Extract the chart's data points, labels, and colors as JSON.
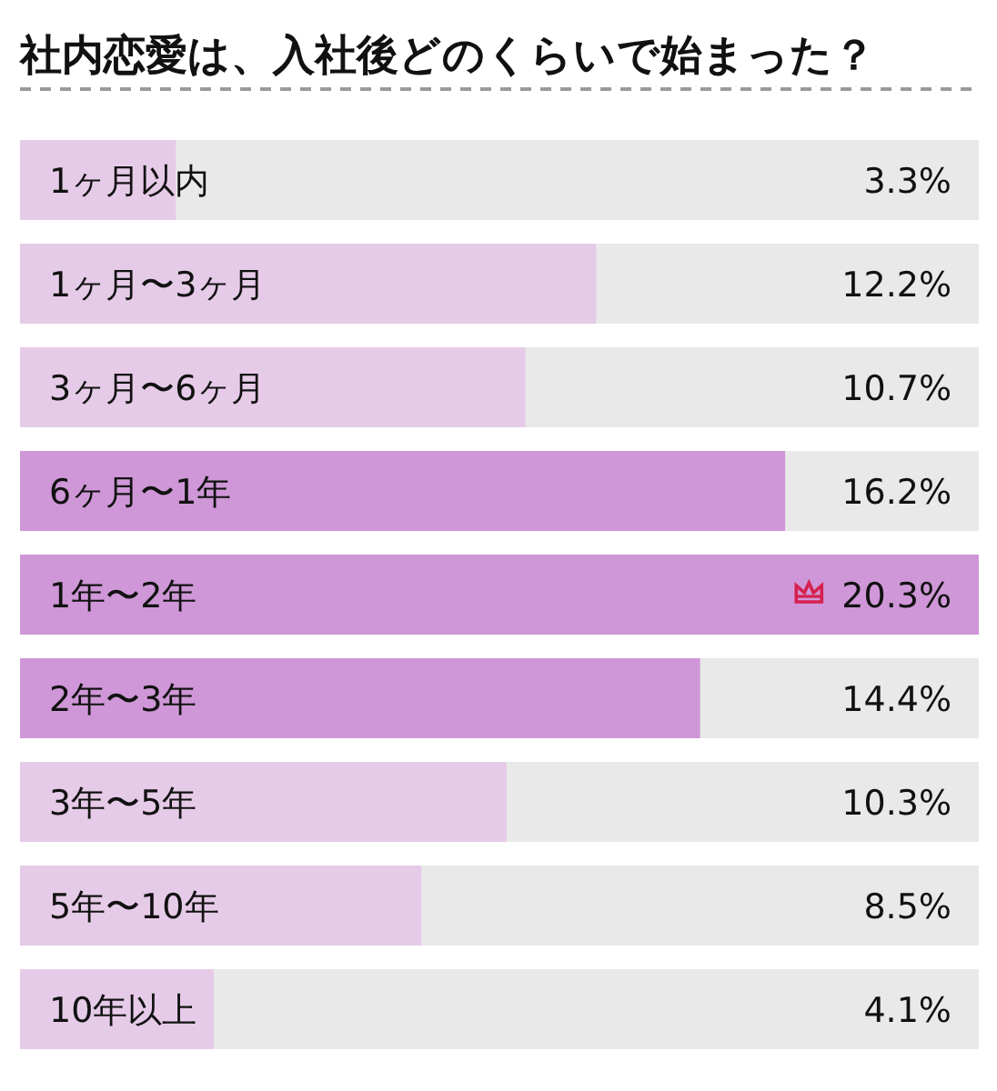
{
  "chart_data": {
    "type": "bar",
    "orientation": "horizontal",
    "title": "社内恋愛は、入社後どのくらいで始まった？",
    "categories": [
      "1ヶ月以内",
      "1ヶ月〜3ヶ月",
      "3ヶ月〜6ヶ月",
      "6ヶ月〜1年",
      "1年〜2年",
      "2年〜3年",
      "3年〜5年",
      "5年〜10年",
      "10年以上"
    ],
    "values": [
      3.3,
      12.2,
      10.7,
      16.2,
      20.3,
      14.4,
      10.3,
      8.5,
      4.1
    ],
    "colors": [
      "#e6cbe8",
      "#e6cbe8",
      "#e6cbe8",
      "#cf97d7",
      "#cf97d7",
      "#cf97d7",
      "#e6cbe8",
      "#e6cbe8",
      "#e6cbe8"
    ],
    "value_labels": [
      "3.3%",
      "12.2%",
      "10.7%",
      "16.2%",
      "20.3%",
      "14.4%",
      "10.3%",
      "8.5%",
      "4.1%"
    ],
    "xlim": [
      0,
      20.3
    ],
    "tick_labels": "y"
  }
}
